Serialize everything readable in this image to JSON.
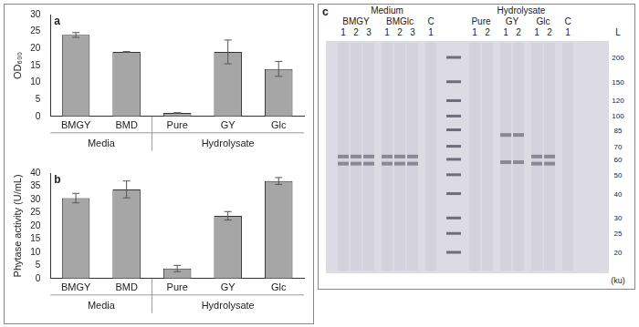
{
  "chart_data": [
    {
      "type": "bar",
      "title": "a",
      "y_label": "OD₆₀₀",
      "categories": [
        "BMGY",
        "BMD",
        "Pure",
        "GY",
        "Glc"
      ],
      "values": [
        24,
        19,
        1,
        19,
        14
      ],
      "errors": [
        0.7,
        0.1,
        0.1,
        3.5,
        2.2
      ],
      "groups": [
        {
          "label": "Media",
          "categories": [
            "BMGY",
            "BMD"
          ]
        },
        {
          "label": "Hydrolysate",
          "categories": [
            "Pure",
            "GY",
            "Glc"
          ]
        }
      ],
      "color": "#a6a6a6",
      "ylim": [
        0,
        30
      ],
      "yticks": [
        0,
        5,
        10,
        15,
        20,
        25,
        30
      ],
      "grid": false
    },
    {
      "type": "bar",
      "title": "b",
      "y_label": "Phytase activity (U/mL)",
      "categories": [
        "BMGY",
        "BMD",
        "Pure",
        "GY",
        "Glc"
      ],
      "values": [
        30.5,
        33.8,
        3.8,
        23.8,
        37
      ],
      "errors": [
        1.8,
        3.2,
        1.2,
        1.6,
        1.3
      ],
      "groups": [
        {
          "label": "Media",
          "categories": [
            "BMGY",
            "BMD"
          ]
        },
        {
          "label": "Hydrolysate",
          "categories": [
            "Pure",
            "GY",
            "Glc"
          ]
        }
      ],
      "color": "#a6a6a6",
      "ylim": [
        0,
        40
      ],
      "yticks": [
        0,
        5,
        10,
        15,
        20,
        25,
        30,
        35,
        40
      ],
      "grid": false
    }
  ],
  "gel": {
    "title": "c",
    "groups": [
      {
        "label": "Medium",
        "samples": [
          {
            "label": "BMGY",
            "lanes": [
              1,
              2,
              3
            ],
            "bands_ku": [
              62,
              57
            ]
          },
          {
            "label": "BMGlc",
            "lanes": [
              1,
              2,
              3
            ],
            "bands_ku": [
              62,
              57
            ]
          },
          {
            "label": "C",
            "lanes": [
              1
            ],
            "bands_ku": []
          }
        ]
      },
      {
        "label": "Hydrolysate",
        "samples": [
          {
            "label": "Pure",
            "lanes": [
              1,
              2
            ],
            "bands_ku": []
          },
          {
            "label": "GY",
            "lanes": [
              1,
              2
            ],
            "bands_ku": [
              80,
              58
            ]
          },
          {
            "label": "Glc",
            "lanes": [
              1,
              2
            ],
            "bands_ku": [
              62,
              57
            ]
          },
          {
            "label": "C",
            "lanes": [
              1
            ],
            "bands_ku": []
          }
        ]
      }
    ],
    "ladder": {
      "label": "L",
      "unit": "(ku)",
      "sizes": [
        200,
        150,
        120,
        100,
        85,
        70,
        60,
        50,
        40,
        30,
        25,
        20
      ]
    }
  }
}
